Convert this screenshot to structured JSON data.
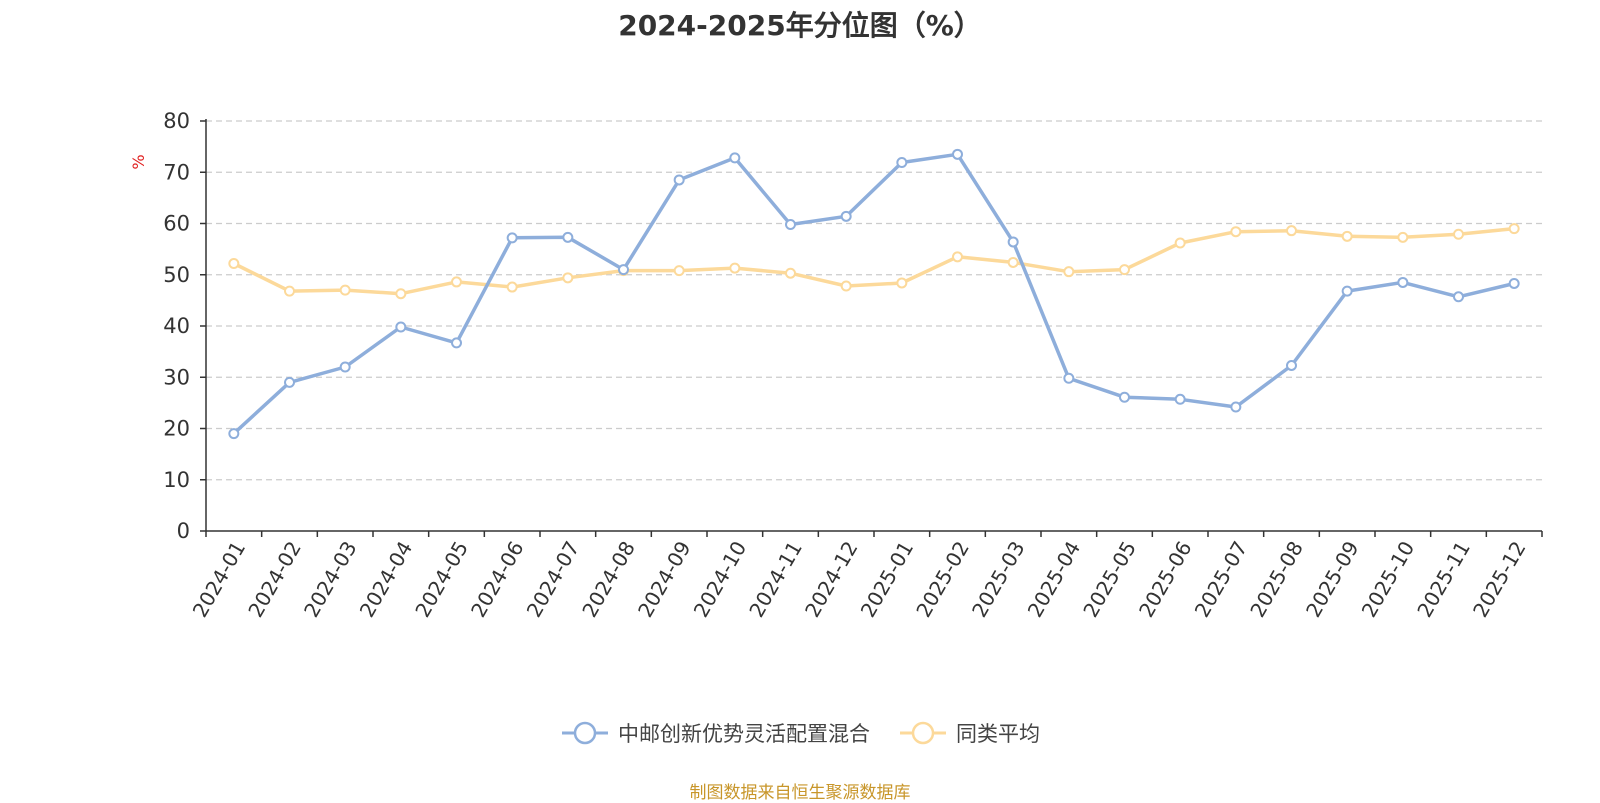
{
  "chart_data": {
    "type": "line",
    "title": "2024-2025年分位图（%）",
    "ylabel": "%",
    "xlabel": "",
    "ylim": [
      0,
      80
    ],
    "yticks": [
      0,
      10,
      20,
      30,
      40,
      50,
      60,
      70,
      80
    ],
    "grid": true,
    "legend_position": "bottom-center",
    "categories": [
      "2024-01",
      "2024-02",
      "2024-03",
      "2024-04",
      "2024-05",
      "2024-06",
      "2024-07",
      "2024-08",
      "2024-09",
      "2024-10",
      "2024-11",
      "2024-12",
      "2025-01",
      "2025-02",
      "2025-03",
      "2025-04",
      "2025-05",
      "2025-06",
      "2025-07",
      "2025-08",
      "2025-09",
      "2025-10",
      "2025-11",
      "2025-12"
    ],
    "series": [
      {
        "name": "中邮创新优势灵活配置混合",
        "color": "#8eaedb",
        "values": [
          19.0,
          29.0,
          32.0,
          39.8,
          36.7,
          57.2,
          57.3,
          51.0,
          68.5,
          72.8,
          59.8,
          61.4,
          71.9,
          73.5,
          56.4,
          29.8,
          26.1,
          25.7,
          24.2,
          32.3,
          46.8,
          48.5,
          45.7,
          48.3
        ]
      },
      {
        "name": "同类平均",
        "color": "#fcd99a",
        "values": [
          52.2,
          46.8,
          47.0,
          46.3,
          48.6,
          47.6,
          49.4,
          50.8,
          50.8,
          51.3,
          50.3,
          47.8,
          48.4,
          53.5,
          52.4,
          50.6,
          51.0,
          56.2,
          58.4,
          58.6,
          57.5,
          57.3,
          57.9,
          59.0
        ]
      }
    ],
    "source": "制图数据来自恒生聚源数据库"
  },
  "colors": {
    "axis": "#333333",
    "grid": "#cccccc",
    "tick_text": "#333333",
    "ylabel": "#e02020",
    "source_text": "#c8962a"
  }
}
